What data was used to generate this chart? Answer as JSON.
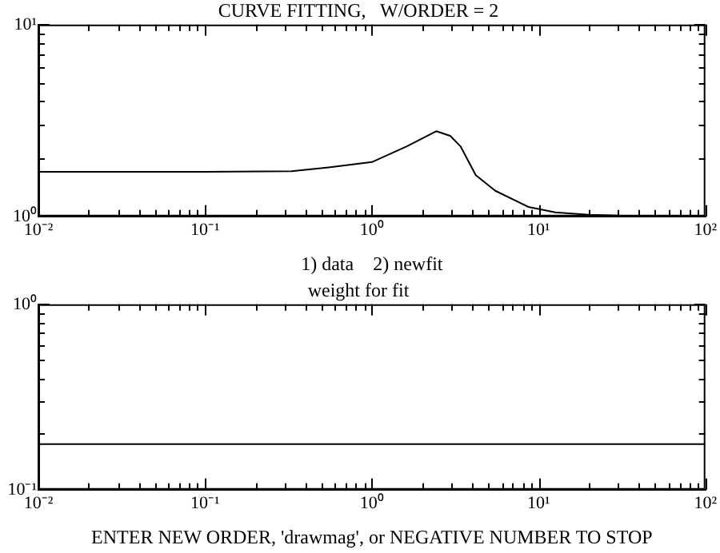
{
  "chart_data": [
    {
      "type": "line",
      "title": "CURVE FITTING,   W/ORDER = 2",
      "xlabel": "1) data    2) newfit",
      "log": "xy",
      "grid": false,
      "legend": false,
      "marker": "none",
      "line_style": "solid",
      "x": [
        0.01,
        0.1,
        0.33,
        0.55,
        1,
        1.62,
        2.44,
        2.95,
        3.4,
        4.2,
        5.5,
        8.7,
        12.6,
        20,
        30
      ],
      "series": [
        {
          "color": "#000000",
          "values": [
            1.71,
            1.71,
            1.72,
            1.8,
            1.92,
            2.32,
            2.78,
            2.63,
            2.32,
            1.64,
            1.36,
            1.12,
            1.05,
            1.02,
            1.01
          ]
        }
      ],
      "xlim": [
        0.01,
        100
      ],
      "ylim": [
        1,
        10
      ],
      "xticks": [
        {
          "value": 0.01,
          "label": "10⁻²"
        },
        {
          "value": 0.02,
          "label": null
        },
        {
          "value": 0.03,
          "label": null
        },
        {
          "value": 0.04,
          "label": null
        },
        {
          "value": 0.05,
          "label": null
        },
        {
          "value": 0.06,
          "label": null
        },
        {
          "value": 0.07,
          "label": null
        },
        {
          "value": 0.08,
          "label": null
        },
        {
          "value": 0.09,
          "label": null
        },
        {
          "value": 0.1,
          "label": "10⁻¹"
        },
        {
          "value": 0.2,
          "label": null
        },
        {
          "value": 0.3,
          "label": null
        },
        {
          "value": 0.4,
          "label": null
        },
        {
          "value": 0.5,
          "label": null
        },
        {
          "value": 0.6,
          "label": null
        },
        {
          "value": 0.7,
          "label": null
        },
        {
          "value": 0.8,
          "label": null
        },
        {
          "value": 0.9,
          "label": null
        },
        {
          "value": 1,
          "label": "10⁰"
        },
        {
          "value": 2,
          "label": null
        },
        {
          "value": 3,
          "label": null
        },
        {
          "value": 4,
          "label": null
        },
        {
          "value": 5,
          "label": null
        },
        {
          "value": 6,
          "label": null
        },
        {
          "value": 7,
          "label": null
        },
        {
          "value": 8,
          "label": null
        },
        {
          "value": 9,
          "label": null
        },
        {
          "value": 10,
          "label": "10¹"
        },
        {
          "value": 20,
          "label": null
        },
        {
          "value": 30,
          "label": null
        },
        {
          "value": 40,
          "label": null
        },
        {
          "value": 50,
          "label": null
        },
        {
          "value": 60,
          "label": null
        },
        {
          "value": 70,
          "label": null
        },
        {
          "value": 80,
          "label": null
        },
        {
          "value": 90,
          "label": null
        },
        {
          "value": 100,
          "label": "10²"
        }
      ],
      "yticks": [
        {
          "value": 1,
          "label": "10⁰"
        },
        {
          "value": 2,
          "label": null
        },
        {
          "value": 3,
          "label": null
        },
        {
          "value": 4,
          "label": null
        },
        {
          "value": 5,
          "label": null
        },
        {
          "value": 6,
          "label": null
        },
        {
          "value": 7,
          "label": null
        },
        {
          "value": 8,
          "label": null
        },
        {
          "value": 9,
          "label": null
        },
        {
          "value": 10,
          "label": "10¹"
        }
      ]
    },
    {
      "type": "line",
      "title": "weight for fit",
      "xlabel": "ENTER NEW ORDER, 'drawmag', or NEGATIVE NUMBER TO STOP",
      "log": "xy",
      "grid": false,
      "legend": false,
      "marker": "none",
      "line_style": "solid",
      "x": [
        0.01,
        100
      ],
      "series": [
        {
          "color": "#000000",
          "values": [
            0.176,
            0.176
          ]
        }
      ],
      "xlim": [
        0.01,
        100
      ],
      "ylim": [
        0.1,
        1
      ],
      "xticks": [
        {
          "value": 0.01,
          "label": "10⁻²"
        },
        {
          "value": 0.02,
          "label": null
        },
        {
          "value": 0.03,
          "label": null
        },
        {
          "value": 0.04,
          "label": null
        },
        {
          "value": 0.05,
          "label": null
        },
        {
          "value": 0.06,
          "label": null
        },
        {
          "value": 0.07,
          "label": null
        },
        {
          "value": 0.08,
          "label": null
        },
        {
          "value": 0.09,
          "label": null
        },
        {
          "value": 0.1,
          "label": "10⁻¹"
        },
        {
          "value": 0.2,
          "label": null
        },
        {
          "value": 0.3,
          "label": null
        },
        {
          "value": 0.4,
          "label": null
        },
        {
          "value": 0.5,
          "label": null
        },
        {
          "value": 0.6,
          "label": null
        },
        {
          "value": 0.7,
          "label": null
        },
        {
          "value": 0.8,
          "label": null
        },
        {
          "value": 0.9,
          "label": null
        },
        {
          "value": 1,
          "label": "10⁰"
        },
        {
          "value": 2,
          "label": null
        },
        {
          "value": 3,
          "label": null
        },
        {
          "value": 4,
          "label": null
        },
        {
          "value": 5,
          "label": null
        },
        {
          "value": 6,
          "label": null
        },
        {
          "value": 7,
          "label": null
        },
        {
          "value": 8,
          "label": null
        },
        {
          "value": 9,
          "label": null
        },
        {
          "value": 10,
          "label": "10¹"
        },
        {
          "value": 20,
          "label": null
        },
        {
          "value": 30,
          "label": null
        },
        {
          "value": 40,
          "label": null
        },
        {
          "value": 50,
          "label": null
        },
        {
          "value": 60,
          "label": null
        },
        {
          "value": 70,
          "label": null
        },
        {
          "value": 80,
          "label": null
        },
        {
          "value": 90,
          "label": null
        },
        {
          "value": 100,
          "label": "10²"
        }
      ],
      "yticks": [
        {
          "value": 0.1,
          "label": "10⁻¹"
        },
        {
          "value": 0.2,
          "label": null
        },
        {
          "value": 0.3,
          "label": null
        },
        {
          "value": 0.4,
          "label": null
        },
        {
          "value": 0.5,
          "label": null
        },
        {
          "value": 0.6,
          "label": null
        },
        {
          "value": 0.7,
          "label": null
        },
        {
          "value": 0.8,
          "label": null
        },
        {
          "value": 0.9,
          "label": null
        },
        {
          "value": 1,
          "label": "10⁰"
        }
      ]
    }
  ]
}
